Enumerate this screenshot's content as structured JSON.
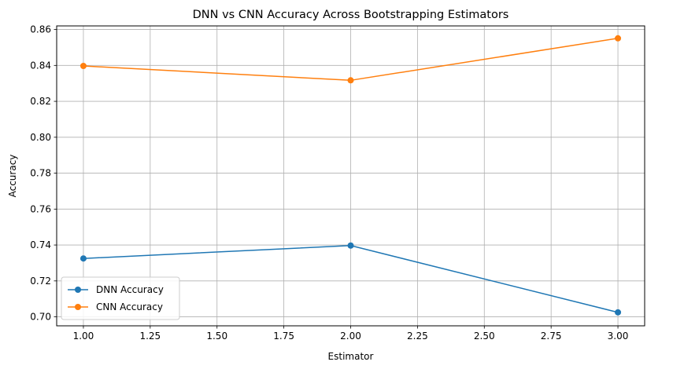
{
  "chart_data": {
    "type": "line",
    "title": "DNN vs CNN Accuracy Across Bootstrapping Estimators",
    "xlabel": "Estimator",
    "ylabel": "Accuracy",
    "xlim": [
      0.9,
      3.1
    ],
    "ylim": [
      0.695,
      0.862
    ],
    "xticks": [
      "1.00",
      "1.25",
      "1.50",
      "1.75",
      "2.00",
      "2.25",
      "2.50",
      "2.75",
      "3.00"
    ],
    "yticks": [
      "0.70",
      "0.72",
      "0.74",
      "0.76",
      "0.78",
      "0.80",
      "0.82",
      "0.84",
      "0.86"
    ],
    "grid": true,
    "legend_position": "lower-left",
    "x": [
      1,
      2,
      3
    ],
    "series": [
      {
        "name": "DNN Accuracy",
        "values": [
          0.7325,
          0.7397,
          0.7025
        ],
        "color": "#1f77b4"
      },
      {
        "name": "CNN Accuracy",
        "values": [
          0.8397,
          0.8317,
          0.8551
        ],
        "color": "#ff7f0e"
      }
    ]
  }
}
